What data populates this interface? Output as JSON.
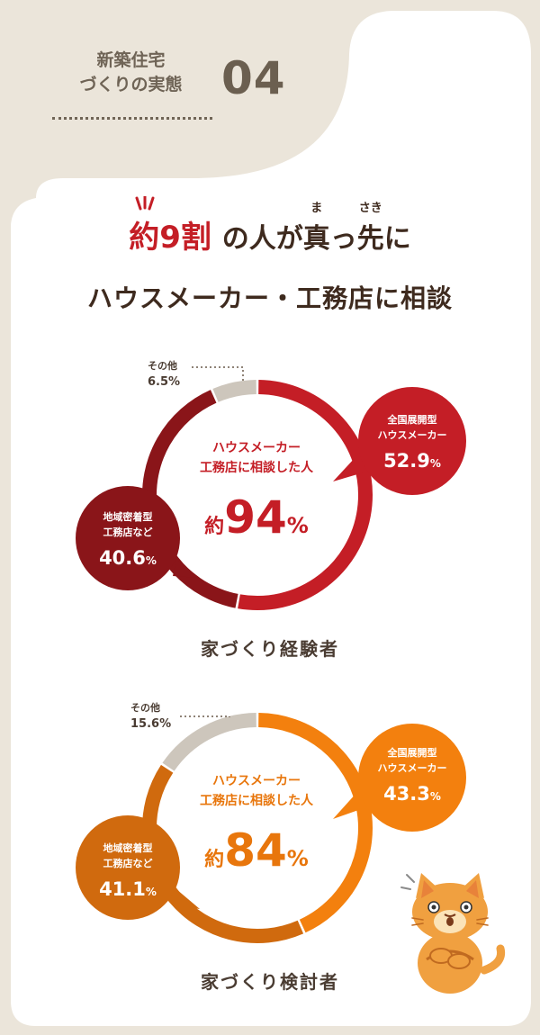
{
  "header": {
    "label_line1": "新築住宅",
    "label_line2": "づくりの実態",
    "number": "04"
  },
  "headline": {
    "line1_prefix": "約",
    "line1_number": "9",
    "line1_kanji": "割",
    "line1_mid": "の人が",
    "line1_ma": "真",
    "line1_ma_ruby": "ま",
    "line1_tsu": "っ",
    "line1_saki": "先",
    "line1_saki_ruby": "さき",
    "line1_suffix": "に",
    "line2": "ハウスメーカー・工務店に相談"
  },
  "colors": {
    "experienced_maker": "#c41e26",
    "experienced_builder": "#8a1519",
    "considering_maker": "#f3800e",
    "considering_builder": "#d06a0e",
    "other": "#cdc6bc"
  },
  "chart_data": [
    {
      "type": "pie",
      "title": "家づくり経験者",
      "center_label_line1": "ハウスメーカー",
      "center_label_line2": "工務店に相談した人",
      "center_prefix": "約",
      "center_value": "94",
      "center_unit": "%",
      "slices": [
        {
          "label_line1": "全国展開型",
          "label_line2": "ハウスメーカー",
          "value": 52.9,
          "value_text": "52.9",
          "unit": "%"
        },
        {
          "label_line1": "地域密着型",
          "label_line2": "工務店など",
          "value": 40.6,
          "value_text": "40.6",
          "unit": "%"
        },
        {
          "label_line1": "その他",
          "label_line2": "",
          "value": 6.5,
          "value_text": "6.5",
          "unit": "%"
        }
      ]
    },
    {
      "type": "pie",
      "title": "家づくり検討者",
      "center_label_line1": "ハウスメーカー",
      "center_label_line2": "工務店に相談した人",
      "center_prefix": "約",
      "center_value": "84",
      "center_unit": "%",
      "slices": [
        {
          "label_line1": "全国展開型",
          "label_line2": "ハウスメーカー",
          "value": 43.3,
          "value_text": "43.3",
          "unit": "%"
        },
        {
          "label_line1": "地域密着型",
          "label_line2": "工務店など",
          "value": 41.1,
          "value_text": "41.1",
          "unit": "%"
        },
        {
          "label_line1": "その他",
          "label_line2": "",
          "value": 15.6,
          "value_text": "15.6",
          "unit": "%"
        }
      ]
    }
  ]
}
